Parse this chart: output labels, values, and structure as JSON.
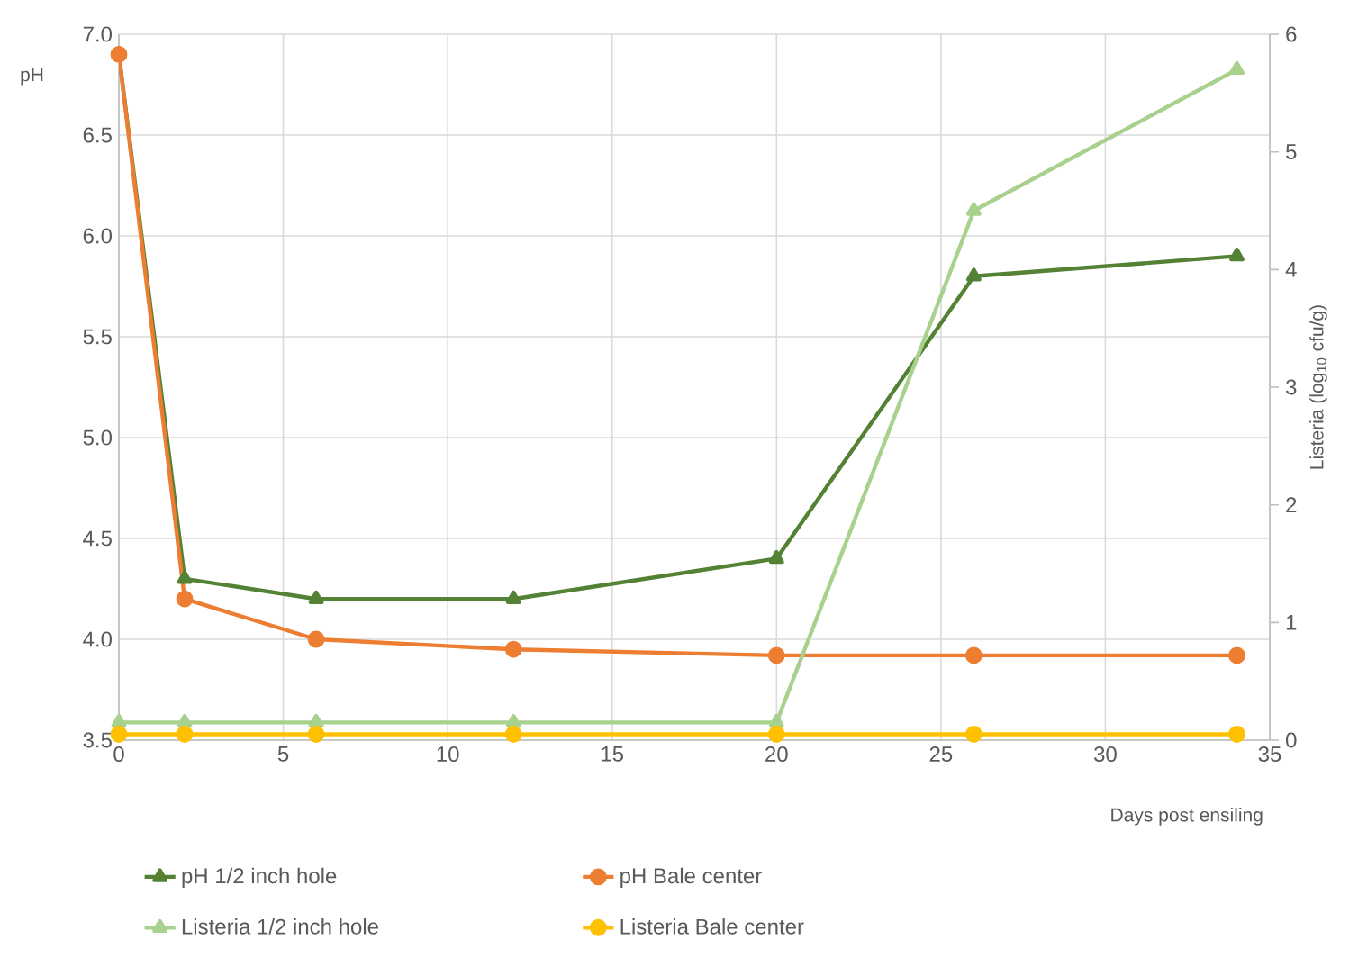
{
  "chart_data": {
    "type": "line",
    "xlabel": "Days post ensiling",
    "ylabel": "pH",
    "y2label": "Listeria (log$_{10}$ cfu/g)",
    "x": [
      0,
      2,
      6,
      12,
      20,
      26,
      34
    ],
    "series": [
      {
        "name": "pH 1/2 inch  hole",
        "color": "#548235",
        "marker": "triangle",
        "values": [
          6.9,
          4.3,
          4.2,
          4.2,
          4.4,
          5.8,
          5.9
        ]
      },
      {
        "name": "pH Bale center",
        "color": "#ed7d31",
        "marker": "circle",
        "values": [
          6.9,
          4.2,
          4.0,
          3.95,
          3.92,
          3.92,
          3.92
        ]
      },
      {
        "name": "Listeria  1/2 inch hole",
        "color": "#a9d18e",
        "marker": "triangle",
        "axis": "y2",
        "values": [
          0.15,
          0.15,
          0.15,
          0.15,
          0.15,
          4.5,
          5.7
        ]
      },
      {
        "name": "Listeria  Bale center",
        "color": "#ffc000",
        "marker": "circle",
        "axis": "y2",
        "values": [
          0.05,
          0.05,
          0.05,
          0.05,
          0.05,
          0.05,
          0.05
        ]
      }
    ],
    "xlim": [
      0,
      35
    ],
    "xticks": [
      0,
      5,
      10,
      15,
      20,
      25,
      30,
      35
    ],
    "ylim": [
      3.5,
      7
    ],
    "yticks": [
      3.5,
      {
        "value": 4,
        "label": "4.0"
      },
      4.5,
      {
        "value": 5,
        "label": "5.0"
      },
      5.5,
      {
        "value": 6,
        "label": "6.0"
      },
      6.5,
      {
        "value": 7,
        "label": "7.0"
      }
    ],
    "y2lim": [
      0,
      6
    ],
    "y2ticks": [
      0,
      1,
      2,
      3,
      4,
      5,
      6
    ],
    "grid": true,
    "legend": "bottom",
    "line_style": "solid"
  }
}
